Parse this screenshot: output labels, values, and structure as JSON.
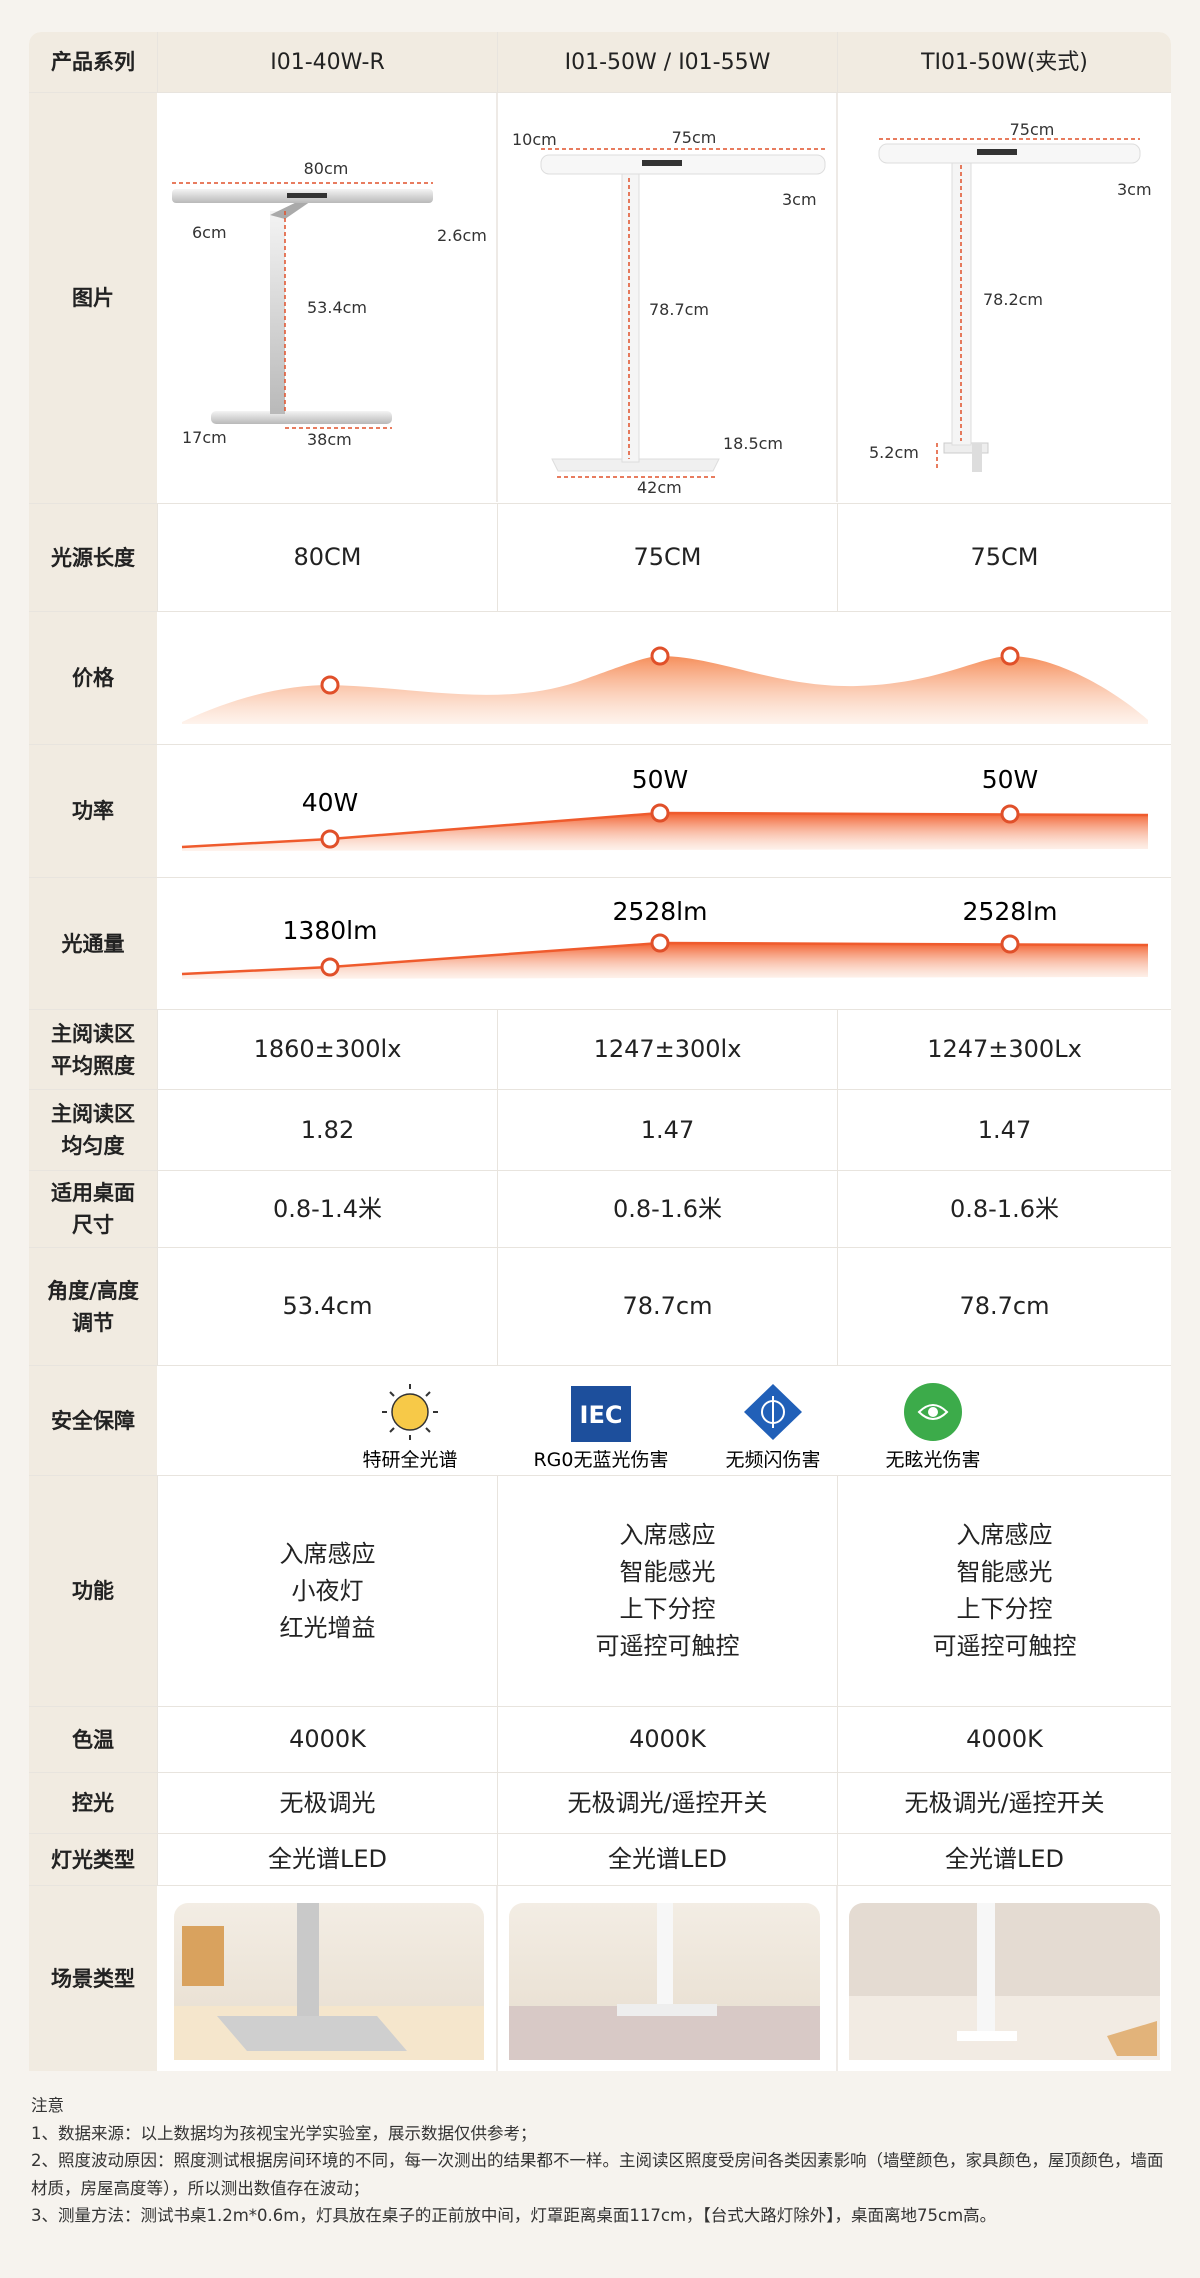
{
  "header": {
    "label": "产品系列",
    "products": [
      "I01-40W-R",
      "I01-50W / I01-55W",
      "TI01-50W(夹式)"
    ]
  },
  "picture": {
    "label": "图片",
    "dims": [
      [
        "80cm",
        "6cm",
        "2.6cm",
        "53.4cm",
        "17cm",
        "38cm"
      ],
      [
        "10cm",
        "75cm",
        "3cm",
        "78.7cm",
        "18.5cm",
        "42cm"
      ],
      [
        "75cm",
        "3cm",
        "78.2cm",
        "5.2cm"
      ]
    ]
  },
  "specs_a": [
    {
      "label": [
        "光源长度"
      ],
      "values": [
        "80CM",
        "75CM",
        "75CM"
      ]
    }
  ],
  "price": {
    "label": "价格"
  },
  "power": {
    "label": "功率",
    "values": [
      "40W",
      "50W",
      "50W"
    ]
  },
  "flux": {
    "label": "光通量",
    "values": [
      "1380lm",
      "2528lm",
      "2528lm"
    ]
  },
  "specs_b": [
    {
      "label": [
        "主阅读区",
        "平均照度"
      ],
      "values": [
        "1860±300lx",
        "1247±300lx",
        "1247±300Lx"
      ]
    },
    {
      "label": [
        "主阅读区",
        "均匀度"
      ],
      "values": [
        "1.82",
        "1.47",
        "1.47"
      ]
    },
    {
      "label": [
        "适用桌面",
        "尺寸"
      ],
      "values": [
        "0.8-1.4米",
        "0.8-1.6米",
        "0.8-1.6米"
      ]
    },
    {
      "label": [
        "角度/高度",
        "调节"
      ],
      "values": [
        "53.4cm",
        "78.7cm",
        "78.7cm"
      ]
    }
  ],
  "safety": {
    "label": "安全保障",
    "logo": "IEC",
    "badges": [
      "特研全光谱",
      "RG0无蓝光伤害",
      "无频闪伤害",
      "无眩光伤害"
    ]
  },
  "specs_c": [
    {
      "label": [
        "功能"
      ],
      "values": [
        [
          "入席感应",
          "小夜灯",
          "红光增益"
        ],
        [
          "入席感应",
          "智能感光",
          "上下分控",
          "可遥控可触控"
        ],
        [
          "入席感应",
          "智能感光",
          "上下分控",
          "可遥控可触控"
        ]
      ]
    }
  ],
  "specs_d": [
    {
      "label": [
        "色温"
      ],
      "values": [
        "4000K",
        "4000K",
        "4000K"
      ]
    },
    {
      "label": [
        "控光"
      ],
      "values": [
        "无极调光",
        "无极调光/遥控开关",
        "无极调光/遥控开关"
      ]
    },
    {
      "label": [
        "灯光类型"
      ],
      "values": [
        "全光谱LED",
        "全光谱LED",
        "全光谱LED"
      ]
    }
  ],
  "scene": {
    "label": "场景类型"
  },
  "notes": {
    "title": "注意",
    "items": [
      "1、数据来源：以上数据均为孩视宝光学实验室，展示数据仅供参考；",
      "2、照度波动原因：照度测试根据房间环境的不同，每一次测出的结果都不一样。主阅读区照度受房间各类因素影响（墙壁颜色，家具颜色，屋顶颜色，墙面材质，房屋高度等），所以测出数值存在波动；",
      "3、测量方法：测试书桌1.2m*0.6m，灯具放在桌子的正前放中间，灯罩距离桌面117cm，【台式大路灯除外】，桌面离地75cm高。"
    ]
  }
}
